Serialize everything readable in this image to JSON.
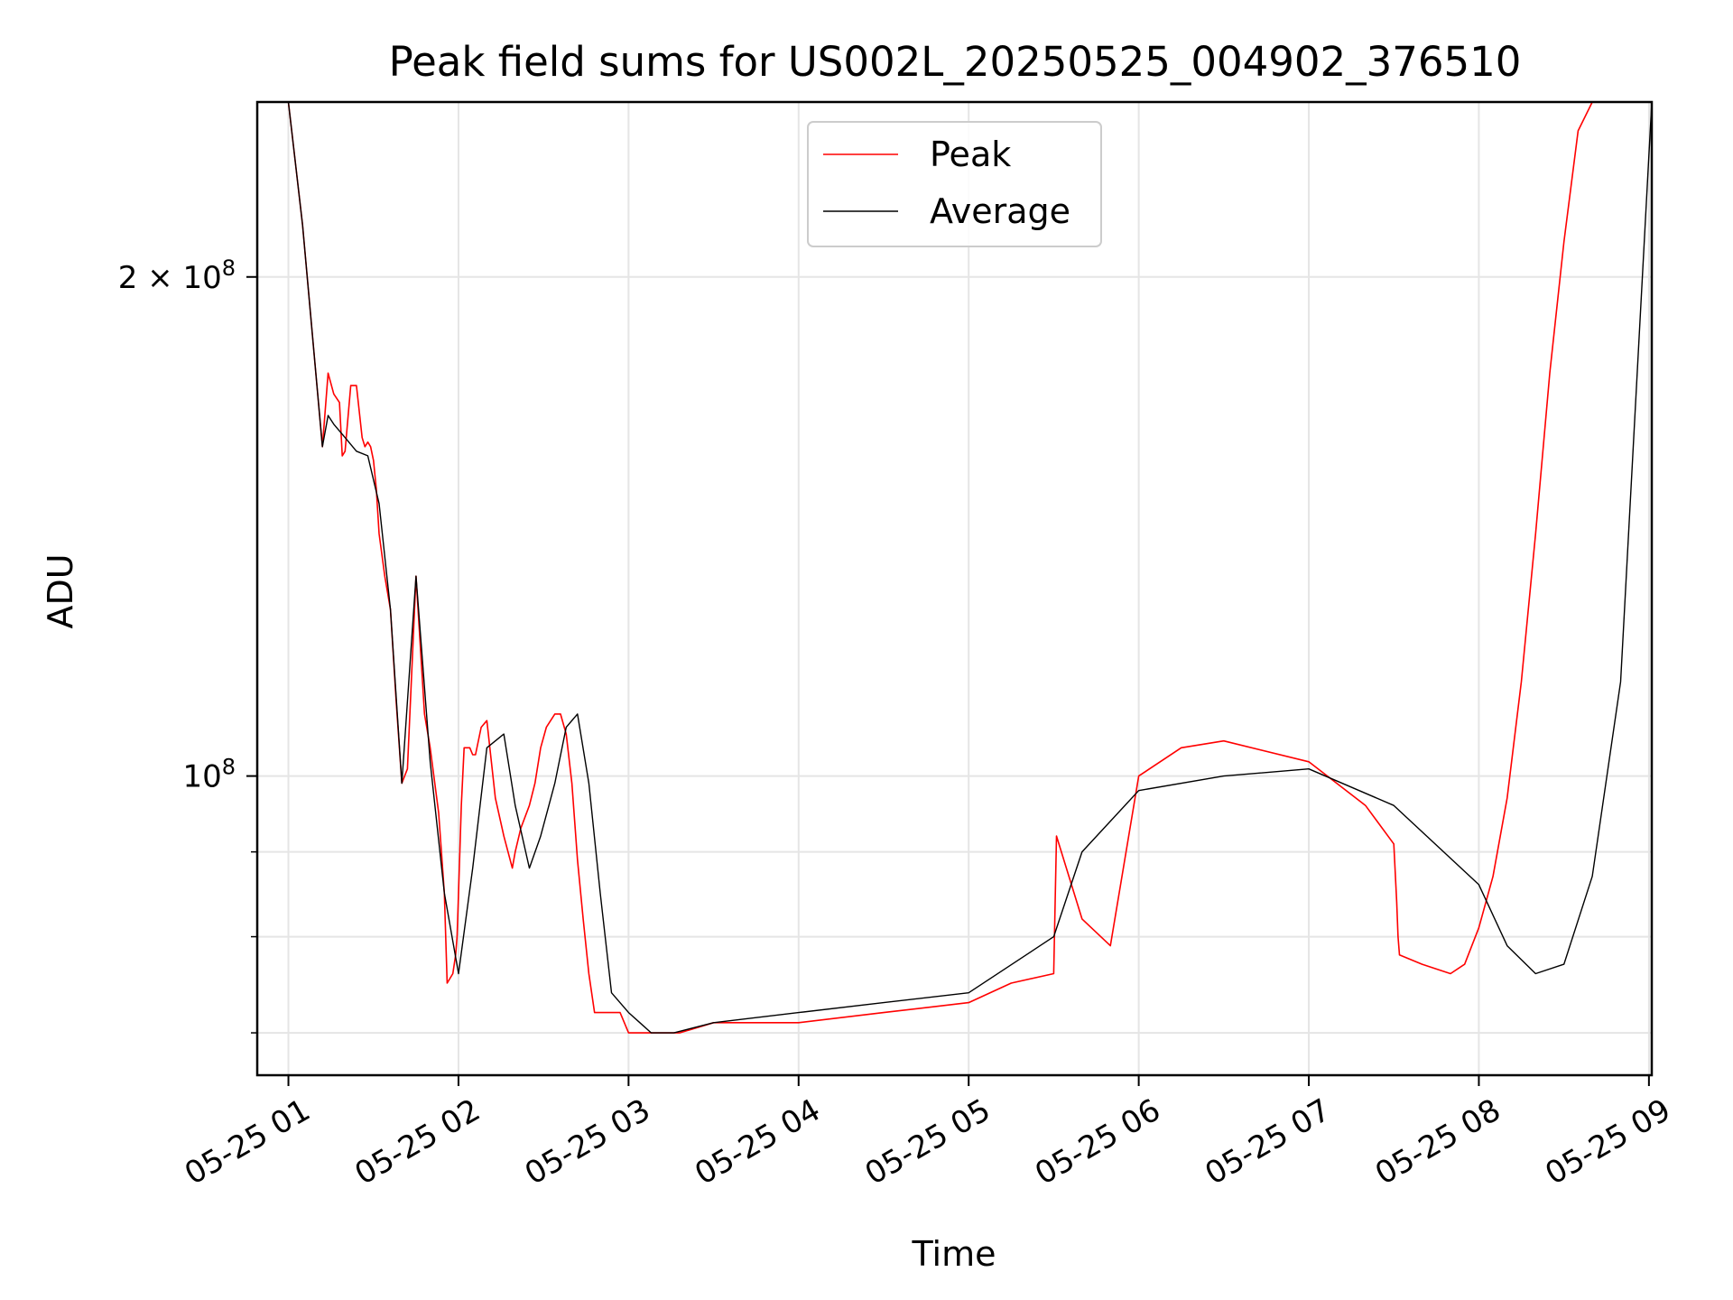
{
  "chart_data": {
    "type": "line",
    "title": "Peak field sums for US002L_20250525_004902_376510",
    "xlabel": "Time",
    "ylabel": "ADU",
    "x_unit": "time (2025-05-25, HH:MM)",
    "xlim": [
      "2025-05-25 00:49",
      "2025-05-25 09:01"
    ],
    "ylim": [
      66000000,
      255000000
    ],
    "yscale": "log",
    "grid": true,
    "legend_position": "top-center",
    "x_ticks": [
      {
        "value": "2025-05-25 01:00",
        "label": "05-25 01"
      },
      {
        "value": "2025-05-25 02:00",
        "label": "05-25 02"
      },
      {
        "value": "2025-05-25 03:00",
        "label": "05-25 03"
      },
      {
        "value": "2025-05-25 04:00",
        "label": "05-25 04"
      },
      {
        "value": "2025-05-25 05:00",
        "label": "05-25 05"
      },
      {
        "value": "2025-05-25 06:00",
        "label": "05-25 06"
      },
      {
        "value": "2025-05-25 07:00",
        "label": "05-25 07"
      },
      {
        "value": "2025-05-25 08:00",
        "label": "05-25 08"
      },
      {
        "value": "2025-05-25 09:00",
        "label": "05-25 09"
      }
    ],
    "y_ticks": [
      {
        "value": 100000000,
        "label_base": "10",
        "label_exp": "8",
        "label_coef": ""
      },
      {
        "value": 200000000,
        "label_base": "10",
        "label_exp": "8",
        "label_coef": "2 × "
      }
    ],
    "y_minor_ticks": [
      70000000,
      80000000,
      90000000
    ],
    "series": [
      {
        "name": "Peak",
        "color": "#ff0000",
        "x": [
          "2025-05-25 00:49",
          "2025-05-25 01:00",
          "2025-05-25 01:05",
          "2025-05-25 01:12",
          "2025-05-25 01:14",
          "2025-05-25 01:16",
          "2025-05-25 01:18",
          "2025-05-25 01:19",
          "2025-05-25 01:20",
          "2025-05-25 01:22",
          "2025-05-25 01:24",
          "2025-05-25 01:26",
          "2025-05-25 01:27",
          "2025-05-25 01:28",
          "2025-05-25 01:29",
          "2025-05-25 01:30",
          "2025-05-25 01:31",
          "2025-05-25 01:32",
          "2025-05-25 01:34",
          "2025-05-25 01:36",
          "2025-05-25 01:38",
          "2025-05-25 01:40",
          "2025-05-25 01:42",
          "2025-05-25 01:45",
          "2025-05-25 01:48",
          "2025-05-25 01:50",
          "2025-05-25 01:53",
          "2025-05-25 01:55",
          "2025-05-25 01:56",
          "2025-05-25 01:58",
          "2025-05-25 01:59",
          "2025-05-25 01:59.5",
          "2025-05-25 02:00",
          "2025-05-25 02:01",
          "2025-05-25 02:02",
          "2025-05-25 02:04",
          "2025-05-25 02:05",
          "2025-05-25 02:06",
          "2025-05-25 02:08",
          "2025-05-25 02:10",
          "2025-05-25 02:13",
          "2025-05-25 02:16",
          "2025-05-25 02:19",
          "2025-05-25 02:20",
          "2025-05-25 02:22",
          "2025-05-25 02:25",
          "2025-05-25 02:27",
          "2025-05-25 02:29",
          "2025-05-25 02:31",
          "2025-05-25 02:34",
          "2025-05-25 02:36",
          "2025-05-25 02:38",
          "2025-05-25 02:40",
          "2025-05-25 02:42",
          "2025-05-25 02:44",
          "2025-05-25 02:46",
          "2025-05-25 02:48",
          "2025-05-25 02:50",
          "2025-05-25 02:52",
          "2025-05-25 02:54",
          "2025-05-25 02:57",
          "2025-05-25 03:00",
          "2025-05-25 03:02",
          "2025-05-25 03:04",
          "2025-05-25 03:06",
          "2025-05-25 03:08",
          "2025-05-25 03:10",
          "2025-05-25 03:12",
          "2025-05-25 03:14",
          "2025-05-25 03:16",
          "2025-05-25 03:18",
          "2025-05-25 03:30",
          "2025-05-25 04:00",
          "2025-05-25 04:30",
          "2025-05-25 05:00",
          "2025-05-25 05:15",
          "2025-05-25 05:30",
          "2025-05-25 05:31",
          "2025-05-25 05:40",
          "2025-05-25 05:50",
          "2025-05-25 06:00",
          "2025-05-25 06:15",
          "2025-05-25 06:30",
          "2025-05-25 07:00",
          "2025-05-25 07:20",
          "2025-05-25 07:30",
          "2025-05-25 07:31",
          "2025-05-25 07:31.5",
          "2025-05-25 07:32",
          "2025-05-25 07:40",
          "2025-05-25 07:50",
          "2025-05-25 07:55",
          "2025-05-25 08:00",
          "2025-05-25 08:05",
          "2025-05-25 08:10",
          "2025-05-25 08:15",
          "2025-05-25 08:20",
          "2025-05-25 08:25",
          "2025-05-25 08:30",
          "2025-05-25 08:35",
          "2025-05-25 08:40",
          "2025-05-25 08:45",
          "2025-05-25 08:50",
          "2025-05-25 08:55",
          "2025-05-25 09:01"
        ],
        "y": [
          255000000,
          255000000,
          215000000,
          158000000,
          175000000,
          170000000,
          168000000,
          156000000,
          157000000,
          172000000,
          172000000,
          160000000,
          158000000,
          159000000,
          158000000,
          155000000,
          149000000,
          140000000,
          132000000,
          126000000,
          111000000,
          99000000,
          101000000,
          132000000,
          109000000,
          104000000,
          95000000,
          85000000,
          75000000,
          76000000,
          78000000,
          80000000,
          85000000,
          96000000,
          104000000,
          104000000,
          103000000,
          103000000,
          107000000,
          108000000,
          97000000,
          92000000,
          88000000,
          90000000,
          93000000,
          96000000,
          99000000,
          104000000,
          107000000,
          109000000,
          109000000,
          106000000,
          99000000,
          89000000,
          82000000,
          76000000,
          72000000,
          72000000,
          72000000,
          72000000,
          72000000,
          70000000,
          70000000,
          70000000,
          70000000,
          70000000,
          70000000,
          70000000,
          70000000,
          70000000,
          70000000,
          71000000,
          71000000,
          72000000,
          73000000,
          75000000,
          76000000,
          92000000,
          82000000,
          79000000,
          100000000,
          104000000,
          105000000,
          102000000,
          96000000,
          91000000,
          84000000,
          80000000,
          78000000,
          77000000,
          76000000,
          77000000,
          81000000,
          87000000,
          97000000,
          114000000,
          140000000,
          175000000,
          210000000,
          245000000,
          255000000,
          255000000,
          255000000,
          255000000,
          255000000
        ]
      },
      {
        "name": "Average",
        "color": "#000000",
        "x": [
          "2025-05-25 00:49",
          "2025-05-25 01:00",
          "2025-05-25 01:05",
          "2025-05-25 01:12",
          "2025-05-25 01:14",
          "2025-05-25 01:16",
          "2025-05-25 01:20",
          "2025-05-25 01:24",
          "2025-05-25 01:28",
          "2025-05-25 01:32",
          "2025-05-25 01:36",
          "2025-05-25 01:40",
          "2025-05-25 01:45",
          "2025-05-25 01:50",
          "2025-05-25 01:55",
          "2025-05-25 02:00",
          "2025-05-25 02:05",
          "2025-05-25 02:10",
          "2025-05-25 02:16",
          "2025-05-25 02:20",
          "2025-05-25 02:25",
          "2025-05-25 02:29",
          "2025-05-25 02:34",
          "2025-05-25 02:38",
          "2025-05-25 02:42",
          "2025-05-25 02:46",
          "2025-05-25 02:50",
          "2025-05-25 02:54",
          "2025-05-25 03:00",
          "2025-05-25 03:04",
          "2025-05-25 03:08",
          "2025-05-25 03:12",
          "2025-05-25 03:16",
          "2025-05-25 03:30",
          "2025-05-25 04:00",
          "2025-05-25 04:30",
          "2025-05-25 05:00",
          "2025-05-25 05:30",
          "2025-05-25 05:40",
          "2025-05-25 06:00",
          "2025-05-25 06:30",
          "2025-05-25 07:00",
          "2025-05-25 07:30",
          "2025-05-25 08:00",
          "2025-05-25 08:10",
          "2025-05-25 08:20",
          "2025-05-25 08:30",
          "2025-05-25 08:40",
          "2025-05-25 08:50",
          "2025-05-25 09:01"
        ],
        "y": [
          255000000,
          255000000,
          215000000,
          158000000,
          165000000,
          163000000,
          160000000,
          157000000,
          156000000,
          146000000,
          126000000,
          99000000,
          132000000,
          102000000,
          85000000,
          76000000,
          88000000,
          104000000,
          106000000,
          96000000,
          88000000,
          92000000,
          99000000,
          107000000,
          109000000,
          99000000,
          85000000,
          74000000,
          72000000,
          71000000,
          70000000,
          70000000,
          70000000,
          71000000,
          72000000,
          73000000,
          74000000,
          80000000,
          90000000,
          98000000,
          100000000,
          101000000,
          96000000,
          86000000,
          79000000,
          76000000,
          77000000,
          87000000,
          114000000,
          255000000
        ]
      }
    ]
  }
}
